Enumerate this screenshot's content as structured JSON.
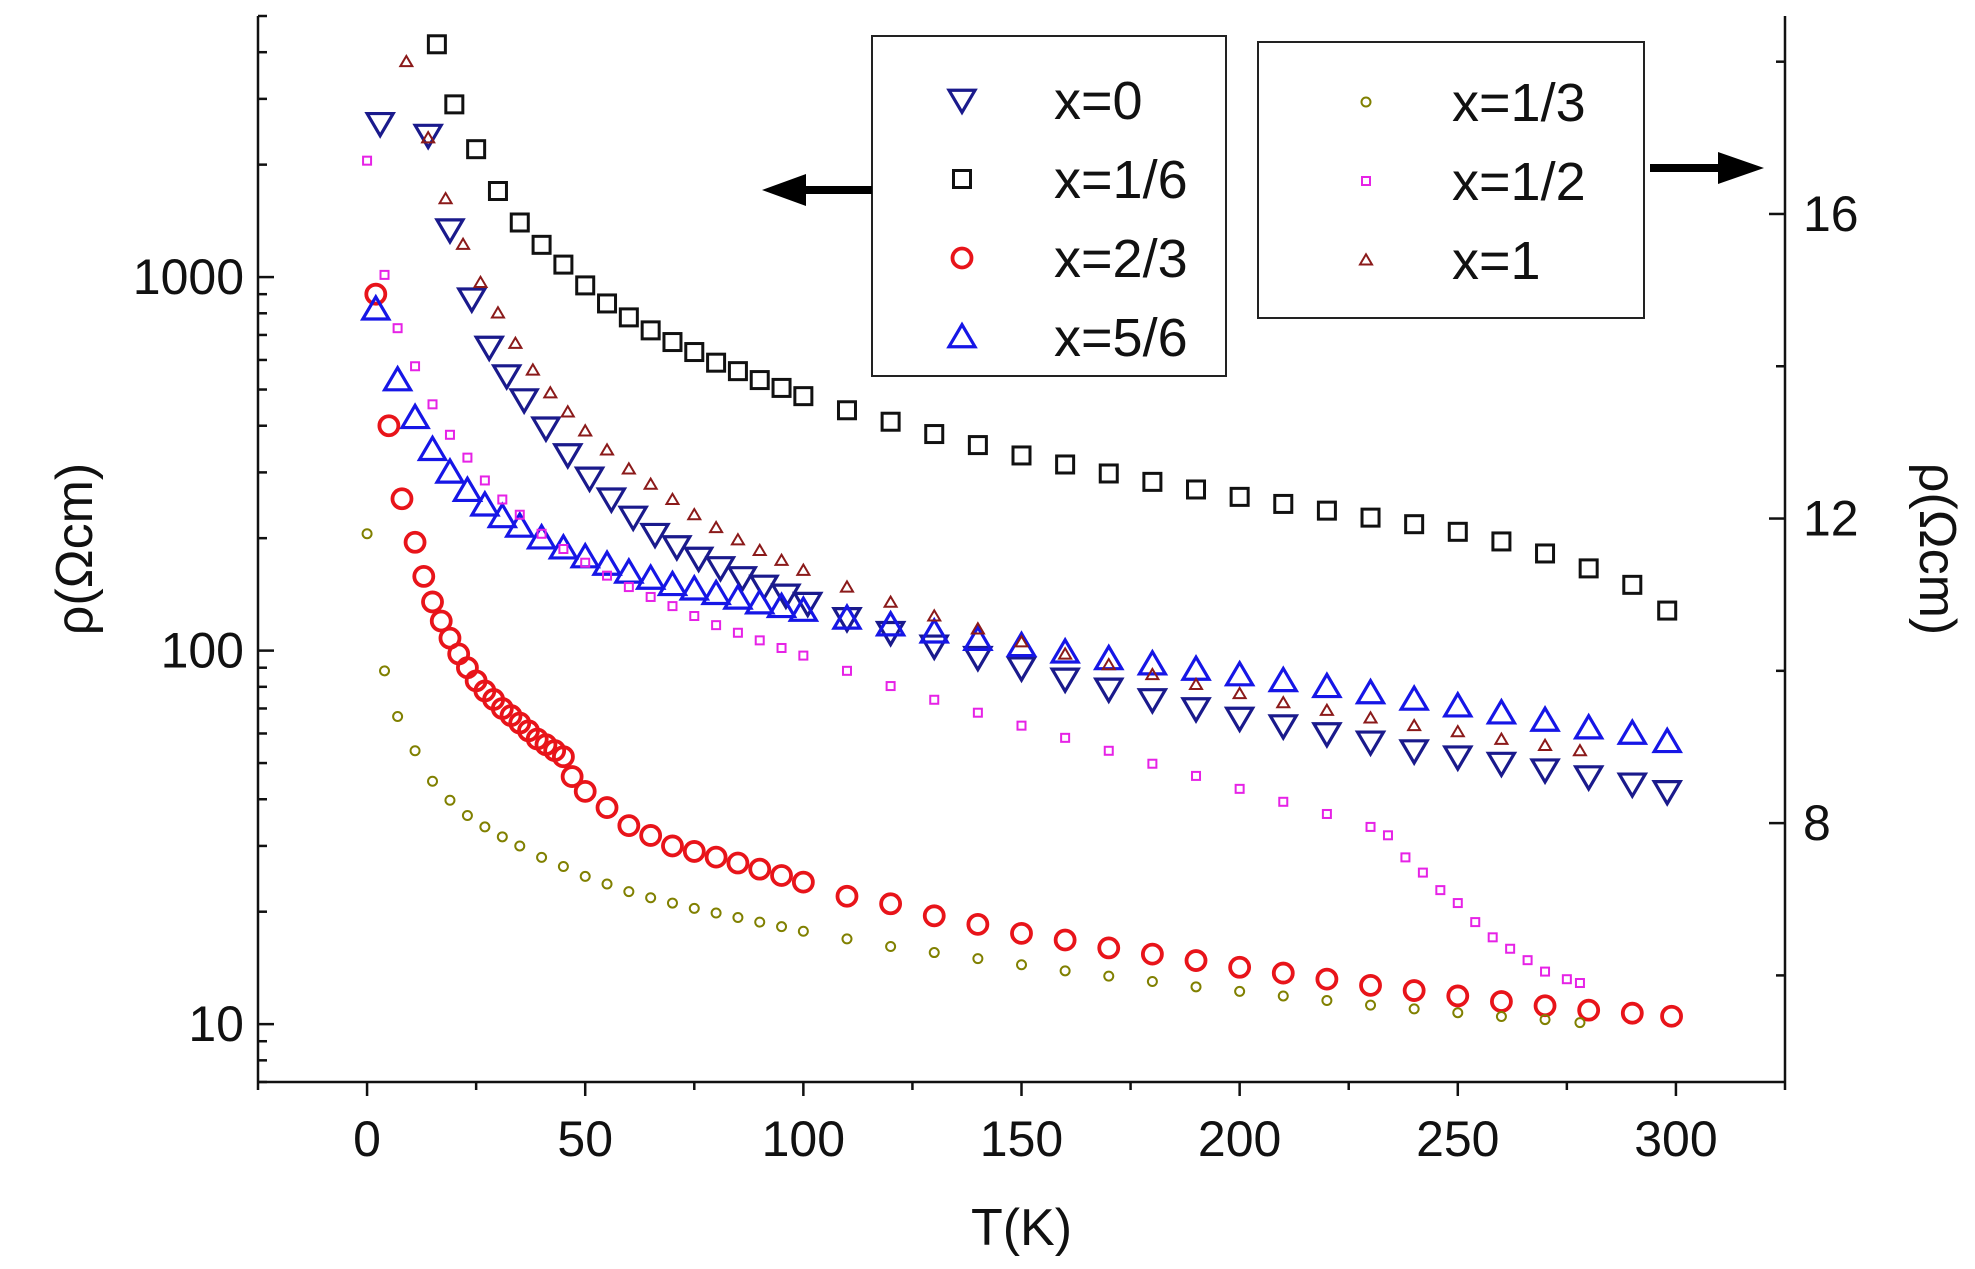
{
  "chart_data": {
    "type": "scatter",
    "title": "",
    "xlabel": "T(K)",
    "ylabel_left": "ρ(Ωcm)",
    "ylabel_right": "ρ(Ωcm)",
    "xlim": [
      -25,
      325
    ],
    "ylim_left_log": [
      7,
      5000
    ],
    "ylim_right": [
      4.6,
      18.6
    ],
    "x_ticks": [
      0,
      50,
      100,
      150,
      200,
      250,
      300
    ],
    "y_left_ticks": [
      10,
      100,
      1000
    ],
    "y_left_tick_labels": [
      "10",
      "100",
      "1000"
    ],
    "y_right_ticks": [
      8,
      12,
      16
    ],
    "y_right_tick_labels": [
      "8",
      "12",
      "16"
    ],
    "legend_left": {
      "placement": "top-center",
      "entries": [
        {
          "label": "x=0",
          "series": "x0"
        },
        {
          "label": "x=1/6",
          "series": "x16"
        },
        {
          "label": "x=2/3",
          "series": "x23"
        },
        {
          "label": "x=5/6",
          "series": "x56"
        }
      ]
    },
    "legend_right": {
      "placement": "top-right",
      "entries": [
        {
          "label": "x=1/3",
          "series": "x13"
        },
        {
          "label": "x=1/2",
          "series": "x12"
        },
        {
          "label": "x=1",
          "series": "x1"
        }
      ]
    },
    "series": [
      {
        "id": "x0",
        "name": "x=0",
        "axis": "left",
        "marker": "triangle-down",
        "color": "#1a1a8c",
        "x": [
          3,
          14,
          19,
          24,
          28,
          32,
          36,
          41,
          46,
          51,
          56,
          61,
          66,
          71,
          76,
          81,
          86,
          91,
          96,
          101,
          110,
          120,
          130,
          140,
          150,
          160,
          170,
          180,
          190,
          200,
          210,
          220,
          230,
          240,
          250,
          260,
          270,
          280,
          290,
          298
        ],
        "values": [
          2580,
          2400,
          1340,
          875,
          650,
          545,
          470,
          395,
          335,
          290,
          255,
          228,
          205,
          190,
          177,
          167,
          157,
          149,
          141,
          134,
          122,
          112,
          103,
          96,
          90,
          84,
          79,
          74,
          70,
          66,
          63,
          60,
          57,
          54,
          52,
          50,
          48,
          46,
          44,
          42
        ]
      },
      {
        "id": "x16",
        "name": "x=1/6",
        "axis": "left",
        "marker": "square",
        "color": "#111111",
        "x": [
          16,
          20,
          25,
          30,
          35,
          40,
          45,
          50,
          55,
          60,
          65,
          70,
          75,
          80,
          85,
          90,
          95,
          100,
          110,
          120,
          130,
          140,
          150,
          160,
          170,
          180,
          190,
          200,
          210,
          220,
          230,
          240,
          250,
          260,
          270,
          280,
          290,
          298
        ],
        "values": [
          4200,
          2900,
          2200,
          1700,
          1400,
          1220,
          1080,
          950,
          850,
          780,
          720,
          670,
          630,
          590,
          560,
          530,
          505,
          480,
          440,
          410,
          380,
          355,
          333,
          315,
          298,
          283,
          270,
          258,
          247,
          237,
          227,
          218,
          208,
          196,
          182,
          166,
          150,
          128
        ]
      },
      {
        "id": "x23",
        "name": "x=2/3",
        "axis": "left",
        "marker": "circle",
        "color": "#e8141a",
        "x": [
          2,
          5,
          8,
          11,
          13,
          15,
          17,
          19,
          21,
          23,
          25,
          27,
          29,
          31,
          33,
          35,
          37,
          39,
          41,
          43,
          45,
          47,
          50,
          55,
          60,
          65,
          70,
          75,
          80,
          85,
          90,
          95,
          100,
          110,
          120,
          130,
          140,
          150,
          160,
          170,
          180,
          190,
          200,
          210,
          220,
          230,
          240,
          250,
          260,
          270,
          280,
          290,
          299
        ],
        "values": [
          900,
          400,
          255,
          195,
          158,
          135,
          120,
          108,
          98,
          90,
          83,
          78,
          74,
          70,
          67,
          64,
          61,
          58,
          56,
          54,
          52,
          46,
          42,
          38,
          34,
          32,
          30,
          29,
          28,
          27,
          26,
          25,
          24,
          22,
          21,
          19.5,
          18.5,
          17.5,
          16.8,
          16,
          15.4,
          14.8,
          14.2,
          13.7,
          13.2,
          12.7,
          12.3,
          11.9,
          11.5,
          11.2,
          10.9,
          10.7,
          10.5
        ]
      },
      {
        "id": "x56",
        "name": "x=5/6",
        "axis": "left",
        "marker": "triangle-up",
        "color": "#1616e6",
        "x": [
          2,
          7,
          11,
          15,
          19,
          23,
          27,
          31,
          35,
          40,
          45,
          50,
          55,
          60,
          65,
          70,
          75,
          80,
          85,
          90,
          95,
          100,
          110,
          120,
          130,
          140,
          150,
          160,
          170,
          180,
          190,
          200,
          210,
          220,
          230,
          240,
          250,
          260,
          270,
          280,
          290,
          298
        ],
        "values": [
          820,
          530,
          420,
          345,
          300,
          268,
          245,
          228,
          215,
          200,
          188,
          178,
          170,
          162,
          156,
          150,
          146,
          142,
          138,
          134,
          131,
          128,
          122,
          117,
          112,
          107,
          103,
          99,
          95,
          92,
          89,
          86,
          83,
          80,
          77,
          74,
          71,
          68,
          65,
          62,
          60,
          57
        ]
      },
      {
        "id": "x13",
        "name": "x=1/3",
        "axis": "right",
        "marker": "small-circle",
        "color": "#808000",
        "x": [
          0,
          4,
          7,
          11,
          15,
          19,
          23,
          27,
          31,
          35,
          40,
          45,
          50,
          55,
          60,
          65,
          70,
          75,
          80,
          85,
          90,
          95,
          100,
          110,
          120,
          130,
          140,
          150,
          160,
          170,
          180,
          190,
          200,
          210,
          220,
          230,
          240,
          250,
          260,
          270,
          278
        ],
        "values": [
          11.8,
          10.0,
          9.4,
          8.95,
          8.55,
          8.3,
          8.1,
          7.95,
          7.82,
          7.7,
          7.55,
          7.43,
          7.3,
          7.2,
          7.1,
          7.02,
          6.95,
          6.88,
          6.82,
          6.76,
          6.7,
          6.64,
          6.58,
          6.48,
          6.38,
          6.3,
          6.22,
          6.14,
          6.06,
          5.99,
          5.92,
          5.85,
          5.79,
          5.73,
          5.67,
          5.61,
          5.56,
          5.51,
          5.46,
          5.42,
          5.38
        ]
      },
      {
        "id": "x12",
        "name": "x=1/2",
        "axis": "right",
        "marker": "small-square",
        "color": "#e622e6",
        "x": [
          0,
          4,
          7,
          11,
          15,
          19,
          23,
          27,
          31,
          35,
          40,
          45,
          50,
          55,
          60,
          65,
          70,
          75,
          80,
          85,
          90,
          95,
          100,
          110,
          120,
          130,
          140,
          150,
          160,
          170,
          180,
          190,
          200,
          210,
          220,
          230,
          234,
          238,
          242,
          246,
          250,
          254,
          258,
          262,
          266,
          270,
          275,
          278
        ],
        "values": [
          16.7,
          15.2,
          14.5,
          14.0,
          13.5,
          13.1,
          12.8,
          12.5,
          12.25,
          12.05,
          11.8,
          11.6,
          11.42,
          11.25,
          11.1,
          10.97,
          10.85,
          10.72,
          10.6,
          10.5,
          10.4,
          10.3,
          10.2,
          10.0,
          9.8,
          9.62,
          9.45,
          9.28,
          9.12,
          8.95,
          8.78,
          8.62,
          8.45,
          8.28,
          8.12,
          7.95,
          7.84,
          7.55,
          7.35,
          7.12,
          6.95,
          6.7,
          6.5,
          6.35,
          6.2,
          6.05,
          5.95,
          5.9
        ]
      },
      {
        "id": "x1",
        "name": "x=1",
        "axis": "right",
        "marker": "small-triangle",
        "color": "#8b1a1a",
        "x": [
          9,
          14,
          18,
          22,
          26,
          30,
          34,
          38,
          42,
          46,
          50,
          55,
          60,
          65,
          70,
          75,
          80,
          85,
          90,
          95,
          100,
          110,
          120,
          130,
          140,
          150,
          160,
          170,
          180,
          190,
          200,
          210,
          220,
          230,
          240,
          250,
          260,
          270,
          278
        ],
        "values": [
          18.0,
          17.0,
          16.2,
          15.6,
          15.1,
          14.7,
          14.3,
          13.95,
          13.65,
          13.4,
          13.15,
          12.9,
          12.65,
          12.45,
          12.25,
          12.05,
          11.88,
          11.72,
          11.58,
          11.45,
          11.32,
          11.1,
          10.9,
          10.72,
          10.55,
          10.38,
          10.22,
          10.08,
          9.95,
          9.82,
          9.7,
          9.58,
          9.48,
          9.38,
          9.28,
          9.2,
          9.1,
          9.02,
          8.95
        ]
      }
    ]
  }
}
